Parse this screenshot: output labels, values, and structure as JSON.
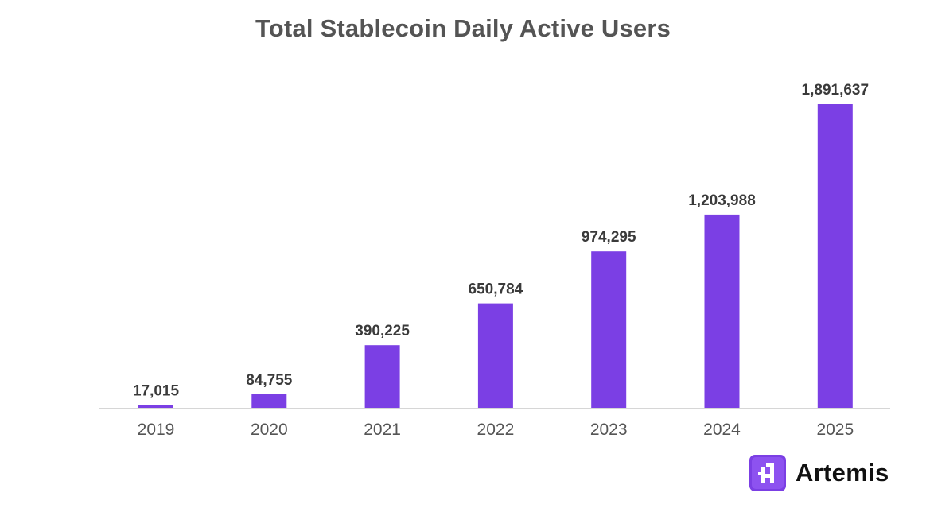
{
  "chart_data": {
    "type": "bar",
    "title": "Total Stablecoin Daily Active Users",
    "categories": [
      "2019",
      "2020",
      "2021",
      "2022",
      "2023",
      "2024",
      "2025"
    ],
    "values": [
      17015,
      84755,
      390225,
      650784,
      974295,
      1203988,
      1891637
    ],
    "value_labels": [
      "17,015",
      "84,755",
      "390,225",
      "650,784",
      "974,295",
      "1,203,988",
      "1,891,637"
    ],
    "xlabel": "",
    "ylabel": "",
    "ylim": [
      0,
      1891637
    ],
    "grid": false,
    "legend": "none",
    "bar_color": "#7b3fe4",
    "axis_color": "#d6d6d6"
  },
  "brand": {
    "name": "Artemis",
    "icon": "artemis-logo-icon",
    "icon_color": "#7b3fe4"
  }
}
